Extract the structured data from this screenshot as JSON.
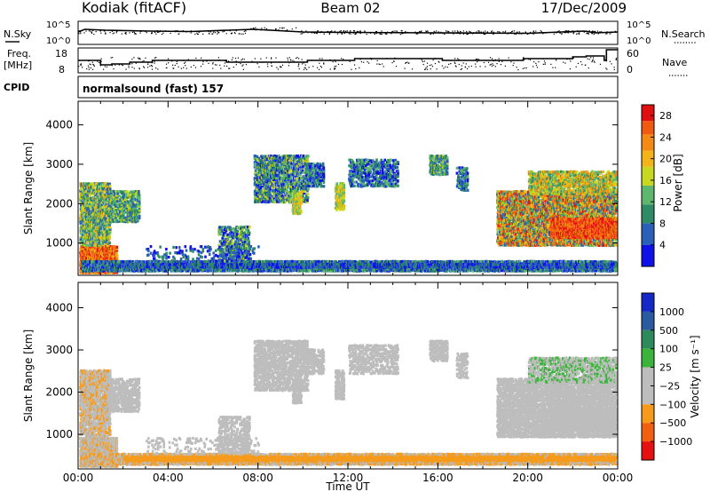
{
  "header": {
    "station": "Kodiak (fitACF)",
    "beam": "Beam 02",
    "date": "17/Dec/2009"
  },
  "strip_labels": {
    "nsky": "N.Sky",
    "nsky_hi": "10^5",
    "nsky_lo": "10^0",
    "nsearch": "N.Search",
    "nsearch_hi": "10^5",
    "nsearch_lo": "10^0",
    "freq_line1": "Freq.",
    "freq_line2": "[MHz]",
    "freq_hi": "18",
    "freq_lo": "8",
    "nave": "Nave",
    "nave_hi": "60",
    "nave_lo": "0",
    "cpid": "CPID",
    "cpid_text": "normalsound (fast) 157"
  },
  "colors": {
    "power": [
      "#1010e8",
      "#2a60b8",
      "#2f8a66",
      "#5db86e",
      "#c8d820",
      "#f2b418",
      "#f28a14",
      "#f05a10",
      "#e01010"
    ],
    "velocity": [
      "#e61010",
      "#f06010",
      "#f59a1a",
      "#bdbdbd",
      "#bdbdbd",
      "#3cb43c",
      "#2e8a5a",
      "#2a5aa0",
      "#1428c8"
    ]
  },
  "chart_data": [
    {
      "type": "heatmap",
      "title": "Power",
      "ylabel": "Slant Range [km]",
      "xlabel": "",
      "x_ticks": [
        "00:00",
        "04:00",
        "08:00",
        "12:00",
        "16:00",
        "20:00",
        "00:00"
      ],
      "y_ticks": [
        1000,
        2000,
        3000,
        4000
      ],
      "xlim_hours": [
        0,
        24
      ],
      "ylim_km": [
        180,
        4600
      ],
      "colorbar_label": "Power [dB]",
      "colorbar_ticks": [
        4,
        8,
        12,
        16,
        20,
        24,
        28
      ],
      "colorbar_range": [
        0,
        30
      ]
    },
    {
      "type": "heatmap",
      "title": "Velocity",
      "ylabel": "Slant Range [km]",
      "xlabel": "Time UT",
      "x_ticks": [
        "00:00",
        "04:00",
        "08:00",
        "12:00",
        "16:00",
        "20:00",
        "00:00"
      ],
      "y_ticks": [
        1000,
        2000,
        3000,
        4000
      ],
      "xlim_hours": [
        0,
        24
      ],
      "ylim_km": [
        180,
        4600
      ],
      "colorbar_label": "Velocity [m s⁻¹]",
      "colorbar_ticks": [
        "1000",
        "500",
        "100",
        "25",
        "−25",
        "−100",
        "−500",
        "−1000"
      ]
    }
  ]
}
